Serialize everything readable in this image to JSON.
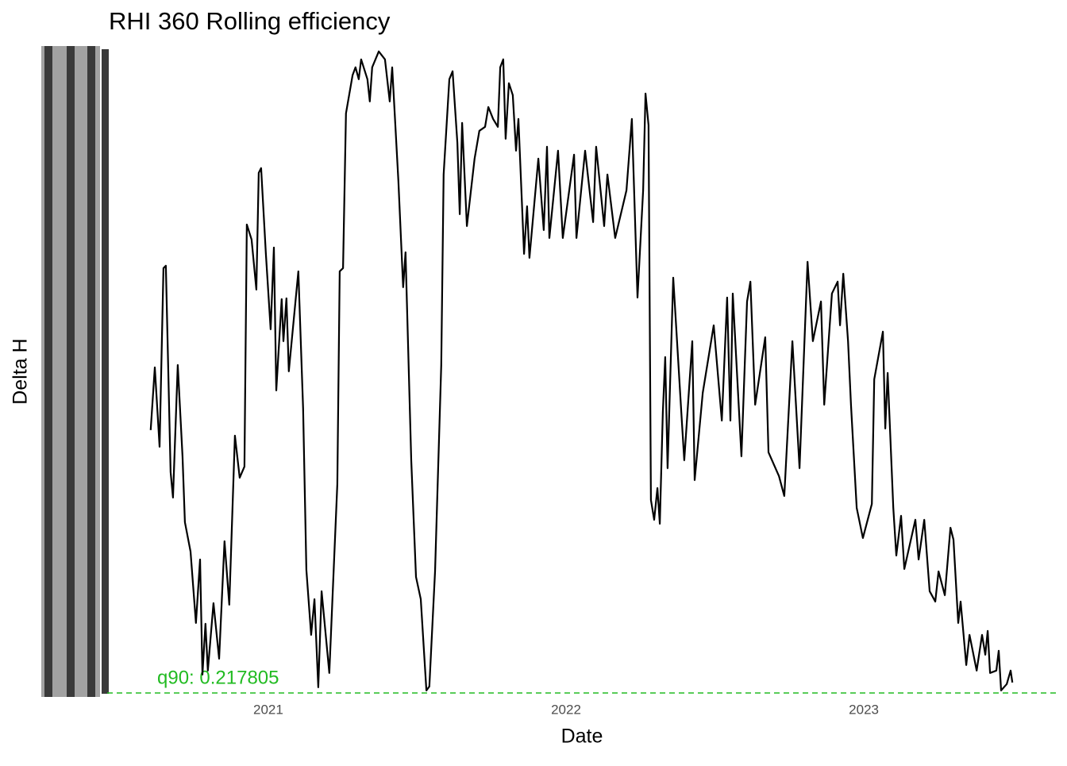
{
  "chart_data": {
    "type": "line",
    "title": "RHI 360 Rolling efficiency",
    "x_label": "Date",
    "y_label": "Delta H",
    "x": [
      2020.605,
      2020.619,
      2020.635,
      2020.648,
      2020.656,
      2020.672,
      2020.68,
      2020.696,
      2020.712,
      2020.72,
      2020.739,
      2020.757,
      2020.771,
      2020.779,
      2020.789,
      2020.797,
      2020.816,
      2020.835,
      2020.853,
      2020.869,
      2020.888,
      2020.904,
      2020.92,
      2020.928,
      2020.944,
      2020.96,
      2020.968,
      2020.976,
      2020.992,
      2021.008,
      2021.019,
      2021.027,
      2021.045,
      2021.051,
      2021.061,
      2021.069,
      2021.101,
      2021.117,
      2021.128,
      2021.144,
      2021.155,
      2021.168,
      2021.179,
      2021.205,
      2021.232,
      2021.24,
      2021.251,
      2021.261,
      2021.283,
      2021.293,
      2021.304,
      2021.312,
      2021.333,
      2021.341,
      2021.349,
      2021.371,
      2021.392,
      2021.408,
      2021.416,
      2021.437,
      2021.453,
      2021.461,
      2021.48,
      2021.496,
      2021.512,
      2021.531,
      2021.541,
      2021.56,
      2021.581,
      2021.589,
      2021.608,
      2021.619,
      2021.635,
      2021.643,
      2021.651,
      2021.667,
      2021.693,
      2021.709,
      2021.728,
      2021.739,
      2021.755,
      2021.771,
      2021.779,
      2021.789,
      2021.797,
      2021.808,
      2021.821,
      2021.832,
      2021.84,
      2021.859,
      2021.869,
      2021.877,
      2021.907,
      2021.925,
      2021.936,
      2021.944,
      2021.973,
      2021.989,
      2022.027,
      2022.035,
      2022.064,
      2022.091,
      2022.101,
      2022.128,
      2022.139,
      2022.165,
      2022.203,
      2022.221,
      2022.24,
      2022.259,
      2022.267,
      2022.277,
      2022.285,
      2022.296,
      2022.307,
      2022.315,
      2022.325,
      2022.333,
      2022.341,
      2022.36,
      2022.387,
      2022.397,
      2022.424,
      2022.432,
      2022.459,
      2022.496,
      2022.523,
      2022.541,
      2022.552,
      2022.56,
      2022.589,
      2022.608,
      2022.619,
      2022.635,
      2022.669,
      2022.68,
      2022.715,
      2022.733,
      2022.76,
      2022.784,
      2022.811,
      2022.829,
      2022.856,
      2022.867,
      2022.893,
      2022.912,
      2022.92,
      2022.931,
      2022.947,
      2022.957,
      2022.976,
      2022.997,
      2023.027,
      2023.035,
      2023.064,
      2023.072,
      2023.08,
      2023.099,
      2023.109,
      2023.125,
      2023.136,
      2023.173,
      2023.184,
      2023.203,
      2023.221,
      2023.24,
      2023.251,
      2023.272,
      2023.291,
      2023.301,
      2023.317,
      2023.325,
      2023.344,
      2023.355,
      2023.379,
      2023.397,
      2023.408,
      2023.416,
      2023.424,
      2023.445,
      2023.453,
      2023.461,
      2023.48,
      2023.493,
      2023.499
    ],
    "series": [
      {
        "color": "#000000",
        "values": [
          0.549,
          0.628,
          0.528,
          0.753,
          0.756,
          0.496,
          0.464,
          0.631,
          0.516,
          0.433,
          0.396,
          0.306,
          0.386,
          0.241,
          0.305,
          0.246,
          0.331,
          0.261,
          0.409,
          0.329,
          0.542,
          0.489,
          0.503,
          0.808,
          0.789,
          0.726,
          0.873,
          0.879,
          0.771,
          0.676,
          0.779,
          0.599,
          0.714,
          0.661,
          0.715,
          0.623,
          0.749,
          0.576,
          0.373,
          0.291,
          0.336,
          0.225,
          0.346,
          0.243,
          0.481,
          0.749,
          0.753,
          0.948,
          0.996,
          1.006,
          0.991,
          1.016,
          0.991,
          0.963,
          1.006,
          1.026,
          1.016,
          0.963,
          1.006,
          0.863,
          0.729,
          0.773,
          0.511,
          0.364,
          0.336,
          0.221,
          0.226,
          0.371,
          0.631,
          0.871,
          0.991,
          1.001,
          0.911,
          0.821,
          0.936,
          0.806,
          0.891,
          0.926,
          0.931,
          0.956,
          0.941,
          0.931,
          1.006,
          1.016,
          0.916,
          0.986,
          0.971,
          0.901,
          0.941,
          0.771,
          0.831,
          0.766,
          0.891,
          0.801,
          0.906,
          0.791,
          0.901,
          0.791,
          0.896,
          0.791,
          0.901,
          0.811,
          0.906,
          0.806,
          0.871,
          0.791,
          0.851,
          0.941,
          0.716,
          0.851,
          0.973,
          0.933,
          0.461,
          0.436,
          0.476,
          0.431,
          0.571,
          0.641,
          0.501,
          0.741,
          0.571,
          0.511,
          0.661,
          0.486,
          0.596,
          0.681,
          0.561,
          0.716,
          0.561,
          0.721,
          0.516,
          0.711,
          0.736,
          0.581,
          0.666,
          0.521,
          0.491,
          0.466,
          0.661,
          0.501,
          0.761,
          0.661,
          0.711,
          0.581,
          0.721,
          0.736,
          0.681,
          0.746,
          0.661,
          0.581,
          0.451,
          0.413,
          0.456,
          0.613,
          0.673,
          0.551,
          0.621,
          0.451,
          0.391,
          0.441,
          0.374,
          0.436,
          0.386,
          0.436,
          0.346,
          0.333,
          0.371,
          0.341,
          0.426,
          0.411,
          0.306,
          0.333,
          0.253,
          0.291,
          0.246,
          0.291,
          0.266,
          0.296,
          0.243,
          0.246,
          0.271,
          0.221,
          0.229,
          0.246,
          0.231
        ]
      }
    ],
    "xlim": [
      2020.459,
      2023.645
    ],
    "ylim": [
      0.2178,
      1.0258
    ],
    "xticks": [
      2021,
      2022,
      2023
    ],
    "hline": {
      "value": 0.217805,
      "color": "#22bb22"
    },
    "annotations": [
      {
        "text": "q90: 0.217805",
        "color": "#22bb22"
      }
    ]
  }
}
